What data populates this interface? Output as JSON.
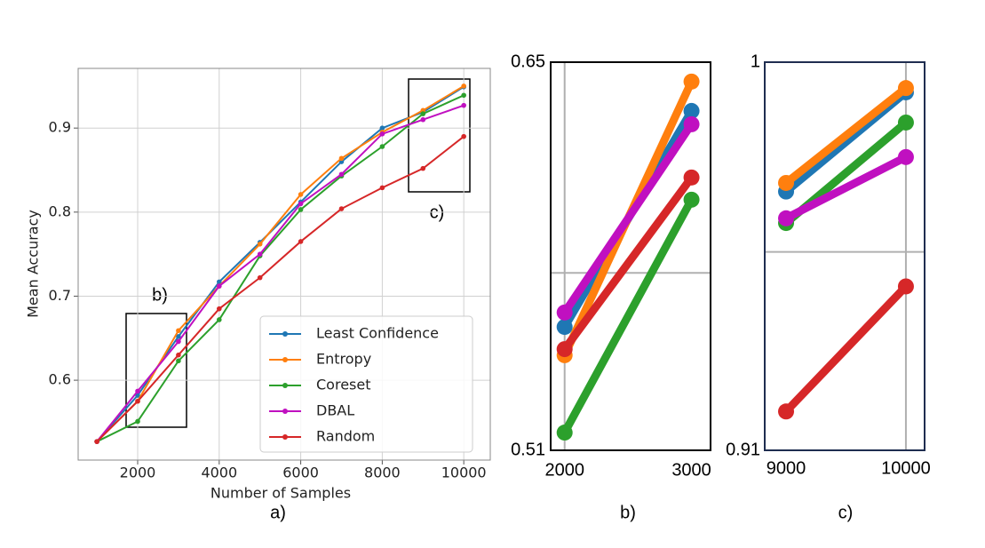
{
  "chart_data": [
    {
      "type": "line",
      "xlabel": "Number of Samples",
      "ylabel": "Mean Accuracy",
      "caption": "a)",
      "xlim": [
        540,
        10650
      ],
      "ylim": [
        0.505,
        0.971
      ],
      "xticks": [
        2000,
        4000,
        6000,
        8000,
        10000
      ],
      "yticks": [
        0.6,
        0.7,
        0.8,
        0.9
      ],
      "grid": true,
      "legend": "lower right",
      "frame_color": "#888888",
      "annotations": [
        "b)",
        "c)"
      ],
      "x": [
        1000,
        2000,
        3000,
        4000,
        5000,
        6000,
        7000,
        8000,
        9000,
        10000
      ],
      "series": [
        {
          "name": "Least Confidence",
          "color": "#1f77b4",
          "values": [
            0.527,
            0.582,
            0.652,
            0.717,
            0.764,
            0.812,
            0.86,
            0.9,
            0.919,
            0.949
          ]
        },
        {
          "name": "Entropy",
          "color": "#ff7f0e",
          "values": [
            0.527,
            0.575,
            0.659,
            0.712,
            0.762,
            0.821,
            0.864,
            0.895,
            0.921,
            0.95
          ]
        },
        {
          "name": "Coreset",
          "color": "#2ca02c",
          "values": [
            0.527,
            0.551,
            0.623,
            0.672,
            0.748,
            0.803,
            0.843,
            0.878,
            0.917,
            0.939
          ]
        },
        {
          "name": "DBAL",
          "color": "#c010c0",
          "values": [
            0.527,
            0.587,
            0.646,
            0.712,
            0.75,
            0.81,
            0.845,
            0.893,
            0.91,
            0.927
          ]
        },
        {
          "name": "Random",
          "color": "#d62728",
          "values": [
            0.527,
            0.575,
            0.63,
            0.685,
            0.722,
            0.765,
            0.804,
            0.829,
            0.852,
            0.89
          ]
        }
      ]
    },
    {
      "type": "line",
      "caption": "b)",
      "xlim": [
        1890,
        3150
      ],
      "ylim": [
        0.51,
        0.65
      ],
      "xticks": [
        2000,
        3000
      ],
      "yticks": [
        0.51,
        0.65
      ],
      "grid_x": [
        2000
      ],
      "grid_y": [
        0.574
      ],
      "frame_color": "#000000",
      "x": [
        2000,
        3000
      ],
      "series": [
        {
          "name": "Least Confidence",
          "color": "#1f77b4",
          "values": [
            0.5545,
            0.6324
          ]
        },
        {
          "name": "Entropy",
          "color": "#ff7f0e",
          "values": [
            0.5443,
            0.643
          ]
        },
        {
          "name": "Coreset",
          "color": "#2ca02c",
          "values": [
            0.5164,
            0.6004
          ]
        },
        {
          "name": "DBAL",
          "color": "#c010c0",
          "values": [
            0.5597,
            0.6276
          ]
        },
        {
          "name": "Random",
          "color": "#d62728",
          "values": [
            0.5465,
            0.6084
          ]
        }
      ]
    },
    {
      "type": "line",
      "caption": "c)",
      "xlim": [
        8822,
        10156
      ],
      "ylim": [
        0.91,
        1
      ],
      "xticks": [
        9000,
        10000
      ],
      "yticks": [
        0.91,
        1
      ],
      "grid_x": [
        10000
      ],
      "grid_y": [
        0.956
      ],
      "frame_color": "#1f2d50",
      "x": [
        9000,
        10000
      ],
      "series": [
        {
          "name": "Least Confidence",
          "color": "#1f77b4",
          "values": [
            0.97,
            0.993
          ]
        },
        {
          "name": "Entropy",
          "color": "#ff7f0e",
          "values": [
            0.972,
            0.994
          ]
        },
        {
          "name": "Coreset",
          "color": "#2ca02c",
          "values": [
            0.9627,
            0.986
          ]
        },
        {
          "name": "DBAL",
          "color": "#c010c0",
          "values": [
            0.9638,
            0.978
          ]
        },
        {
          "name": "Random",
          "color": "#d62728",
          "values": [
            0.919,
            0.948
          ]
        }
      ]
    }
  ]
}
